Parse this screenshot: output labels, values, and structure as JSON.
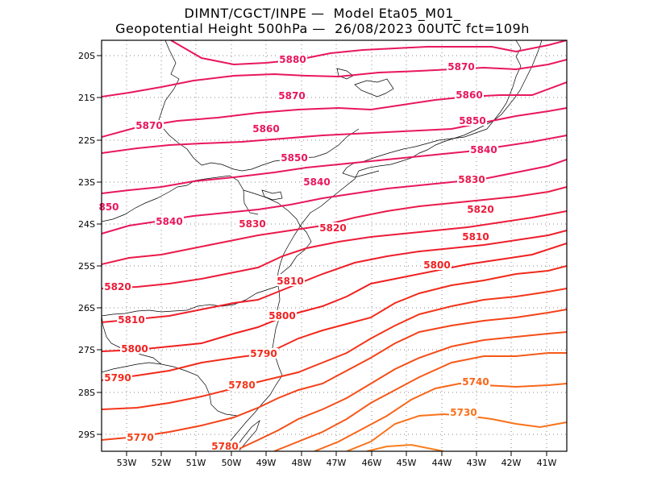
{
  "header": {
    "line1": "DIMNT/CGCT/INPE —  Model Eta05_M01_",
    "line2": "Geopotential Height 500hPa —  26/08/2023 00UTC fct=109h"
  },
  "map": {
    "lon_range": [
      -53.7,
      -40.5
    ],
    "lat_range": [
      -29.4,
      -19.7
    ],
    "lon_ticks": [
      "53W",
      "52W",
      "51W",
      "50W",
      "49W",
      "48W",
      "47W",
      "46W",
      "45W",
      "44W",
      "43W",
      "42W",
      "41W"
    ],
    "lat_ticks": [
      "20S",
      "21S",
      "22S",
      "23S",
      "24S",
      "25S",
      "26S",
      "27S",
      "28S",
      "29S"
    ],
    "grid": "dotted",
    "coastline_color": "#000000"
  },
  "contour_labels": [
    {
      "text": "5880",
      "color": "#e8175d"
    },
    {
      "text": "5870",
      "color": "#e8175d"
    },
    {
      "text": "5870",
      "color": "#e8175d"
    },
    {
      "text": "5870",
      "color": "#e8175d"
    },
    {
      "text": "5860",
      "color": "#e8175d"
    },
    {
      "text": "5860",
      "color": "#e8175d"
    },
    {
      "text": "5850",
      "color": "#e8175d"
    },
    {
      "text": "5850",
      "color": "#e8175d"
    },
    {
      "text": "5840",
      "color": "#e8175d"
    },
    {
      "text": "5840",
      "color": "#e8175d"
    },
    {
      "text": "5840",
      "color": "#e8175d"
    },
    {
      "text": "5830",
      "color": "#ea1a4a"
    },
    {
      "text": "5830",
      "color": "#ea1a4a"
    },
    {
      "text": "5820",
      "color": "#ec1c3a"
    },
    {
      "text": "5820",
      "color": "#ec1c3a"
    },
    {
      "text": "5820",
      "color": "#ec1c3a"
    },
    {
      "text": "5810",
      "color": "#ee1e2a"
    },
    {
      "text": "5810",
      "color": "#ee1e2a"
    },
    {
      "text": "5810",
      "color": "#ee1e2a"
    },
    {
      "text": "5800",
      "color": "#f01f1f"
    },
    {
      "text": "5800",
      "color": "#f01f1f"
    },
    {
      "text": "5800",
      "color": "#f01f1f"
    },
    {
      "text": "5790",
      "color": "#f22a1a"
    },
    {
      "text": "5790",
      "color": "#f22a1a"
    },
    {
      "text": "5780",
      "color": "#f33619"
    },
    {
      "text": "5780",
      "color": "#f33619"
    },
    {
      "text": "5770",
      "color": "#f44218"
    },
    {
      "text": "5740",
      "color": "#f8661a"
    },
    {
      "text": "5730",
      "color": "#f9721b"
    },
    {
      "text": "850",
      "color": "#e8175d"
    }
  ]
}
